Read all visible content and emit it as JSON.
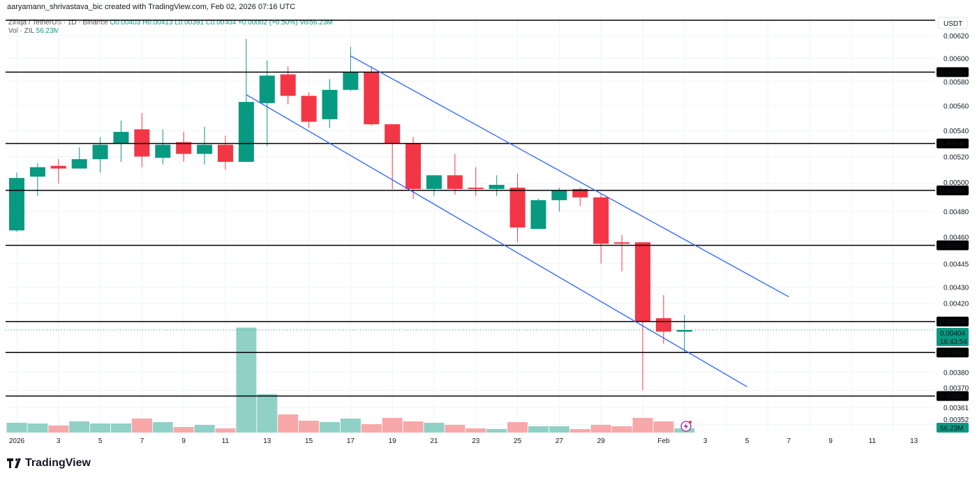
{
  "credit": "aaryamann_shrivastava_bic created with TradingView.com, Feb 02, 2026 07:16 UTC",
  "legend": {
    "symbol": "Zilliqa / TetherUS · 1D · Binance",
    "open": "O0.00403",
    "high": "H0.00413",
    "low": "L0.00391",
    "close": "C0.00404",
    "change": "+0.00002 (+0.50%)",
    "vol": "Vol56.23M",
    "vol_label": "Vol · ZIL",
    "vol_value": "56.23M"
  },
  "currency": "USDT",
  "brand": "TradingView",
  "colors": {
    "up": "#089981",
    "down": "#F23645",
    "vol_up": "#8FD1C6",
    "vol_down": "#F7A8A9",
    "channel": "#2962FF",
    "level": "#000000"
  },
  "chart_data": {
    "type": "candlestick",
    "scale": "log",
    "ylim": [
      0.00345,
      0.0064
    ],
    "y_ticks": [
      "0.00620",
      "0.00600",
      "0.00580",
      "0.00560",
      "0.00540",
      "0.00520",
      "0.00500",
      "0.00480",
      "0.00460",
      "0.00445",
      "0.00430",
      "0.00420",
      "0.00380",
      "0.00370",
      "0.00361",
      "0.00352"
    ],
    "x_ticks": [
      "2026",
      "3",
      "5",
      "7",
      "9",
      "11",
      "13",
      "15",
      "17",
      "19",
      "21",
      "23",
      "25",
      "27",
      "29",
      "Feb",
      "3",
      "5",
      "7",
      "9",
      "11",
      "13"
    ],
    "dates": [
      "Jan 1",
      "Jan 2",
      "Jan 3",
      "Jan 4",
      "Jan 5",
      "Jan 6",
      "Jan 7",
      "Jan 8",
      "Jan 9",
      "Jan 10",
      "Jan 11",
      "Jan 12",
      "Jan 13",
      "Jan 14",
      "Jan 15",
      "Jan 16",
      "Jan 17",
      "Jan 18",
      "Jan 19",
      "Jan 20",
      "Jan 21",
      "Jan 22",
      "Jan 23",
      "Jan 24",
      "Jan 25",
      "Jan 26",
      "Jan 27",
      "Jan 28",
      "Jan 29",
      "Jan 30",
      "Jan 31",
      "Feb 1",
      "Feb 2"
    ],
    "ohlc": [
      [
        0.00467,
        0.00508,
        0.00466,
        0.00504
      ],
      [
        0.00505,
        0.00515,
        0.00491,
        0.00512
      ],
      [
        0.00513,
        0.00518,
        0.005,
        0.00511
      ],
      [
        0.00511,
        0.00527,
        0.00511,
        0.00518
      ],
      [
        0.00518,
        0.00535,
        0.00508,
        0.00529
      ],
      [
        0.0053,
        0.00548,
        0.00516,
        0.00539
      ],
      [
        0.00541,
        0.00554,
        0.00512,
        0.0052
      ],
      [
        0.00519,
        0.00541,
        0.00514,
        0.00529
      ],
      [
        0.00531,
        0.00539,
        0.00516,
        0.00522
      ],
      [
        0.00522,
        0.00543,
        0.00514,
        0.00529
      ],
      [
        0.00529,
        0.00536,
        0.0051,
        0.00516
      ],
      [
        0.00516,
        0.00617,
        0.00516,
        0.00563
      ],
      [
        0.00562,
        0.00598,
        0.00528,
        0.00585
      ],
      [
        0.00586,
        0.00593,
        0.00561,
        0.00568
      ],
      [
        0.00568,
        0.00571,
        0.00542,
        0.00547
      ],
      [
        0.00549,
        0.00582,
        0.00542,
        0.00573
      ],
      [
        0.00573,
        0.0061,
        0.00572,
        0.00588
      ],
      [
        0.00588,
        0.00593,
        0.00544,
        0.00545
      ],
      [
        0.00545,
        0.00545,
        0.00496,
        0.0053
      ],
      [
        0.0053,
        0.00535,
        0.00489,
        0.00496
      ],
      [
        0.00496,
        0.00506,
        0.00491,
        0.00506
      ],
      [
        0.00506,
        0.00522,
        0.00492,
        0.00496
      ],
      [
        0.00497,
        0.00512,
        0.00491,
        0.00496
      ],
      [
        0.00496,
        0.00506,
        0.00491,
        0.00499
      ],
      [
        0.00497,
        0.00507,
        0.00459,
        0.00469
      ],
      [
        0.00468,
        0.00489,
        0.00468,
        0.00488
      ],
      [
        0.00488,
        0.00497,
        0.0048,
        0.00495
      ],
      [
        0.00496,
        0.00497,
        0.00484,
        0.0049
      ],
      [
        0.0049,
        0.00493,
        0.00445,
        0.00458
      ],
      [
        0.00459,
        0.00464,
        0.0044,
        0.00458
      ],
      [
        0.00459,
        0.00459,
        0.0037,
        0.00409
      ],
      [
        0.00411,
        0.00425,
        0.00396,
        0.00403
      ],
      [
        0.00403,
        0.00413,
        0.00391,
        0.00404
      ]
    ],
    "volume_millions": [
      132,
      122,
      94,
      150,
      122,
      122,
      188,
      141,
      75,
      103,
      56,
      1410,
      517,
      244,
      160,
      141,
      188,
      113,
      197,
      150,
      132,
      103,
      56,
      47,
      141,
      85,
      85,
      47,
      103,
      85,
      197,
      150,
      56.23
    ],
    "horizontal_levels": [
      "0.00588",
      "0.00530",
      "0.00495",
      "0.00457",
      "0.00409",
      "0.00391",
      "0.00367"
    ],
    "channel": {
      "upper": [
        [
          "Jan 17",
          0.00602
        ],
        [
          "Feb 7",
          0.00424
        ]
      ],
      "lower": [
        [
          "Jan 12",
          0.00569
        ],
        [
          "Feb 5",
          0.00372
        ]
      ]
    },
    "last_price": "0.00404",
    "countdown": "16:43:54",
    "last_volume": "56.23M"
  }
}
